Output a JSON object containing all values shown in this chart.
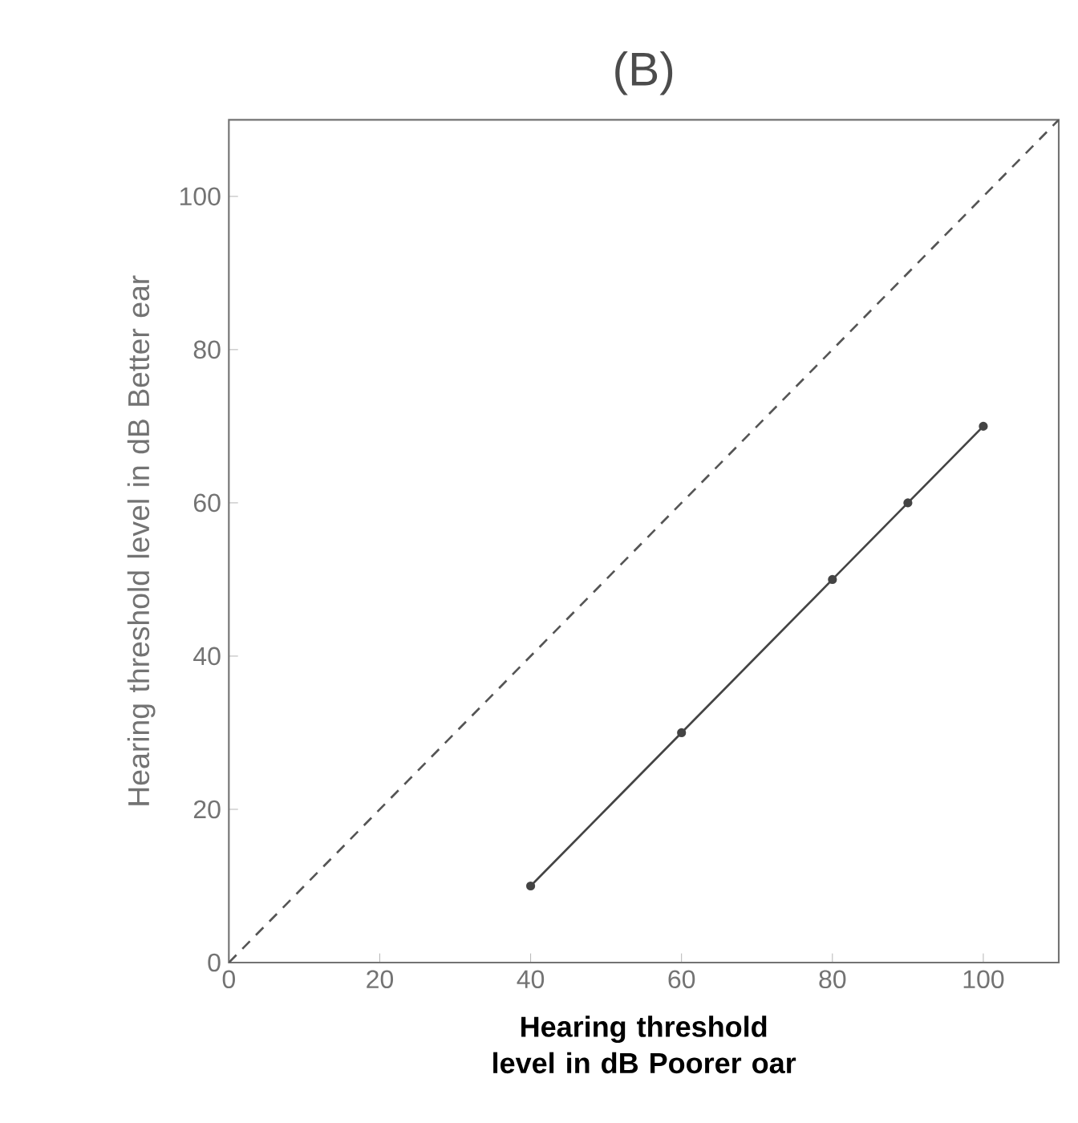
{
  "chart_data": {
    "type": "line",
    "title": "(B)",
    "xlabel": "Hearing threshold level in dB Poorer oar",
    "ylabel": "Hearing threshold level in dB Better ear",
    "xlim": [
      0,
      110
    ],
    "ylim": [
      0,
      110
    ],
    "xticks": [
      0,
      20,
      40,
      60,
      80,
      100
    ],
    "yticks": [
      0,
      20,
      40,
      60,
      80,
      100
    ],
    "series": [
      {
        "x": [
          0,
          110
        ],
        "values": [
          0,
          110
        ],
        "color": "#555555",
        "line_style": "dashed",
        "marker": "none"
      },
      {
        "x": [
          40,
          60,
          80,
          90,
          100
        ],
        "values": [
          10,
          30,
          50,
          60,
          70
        ],
        "color": "#444444",
        "line_style": "solid",
        "marker": "circle"
      }
    ]
  }
}
